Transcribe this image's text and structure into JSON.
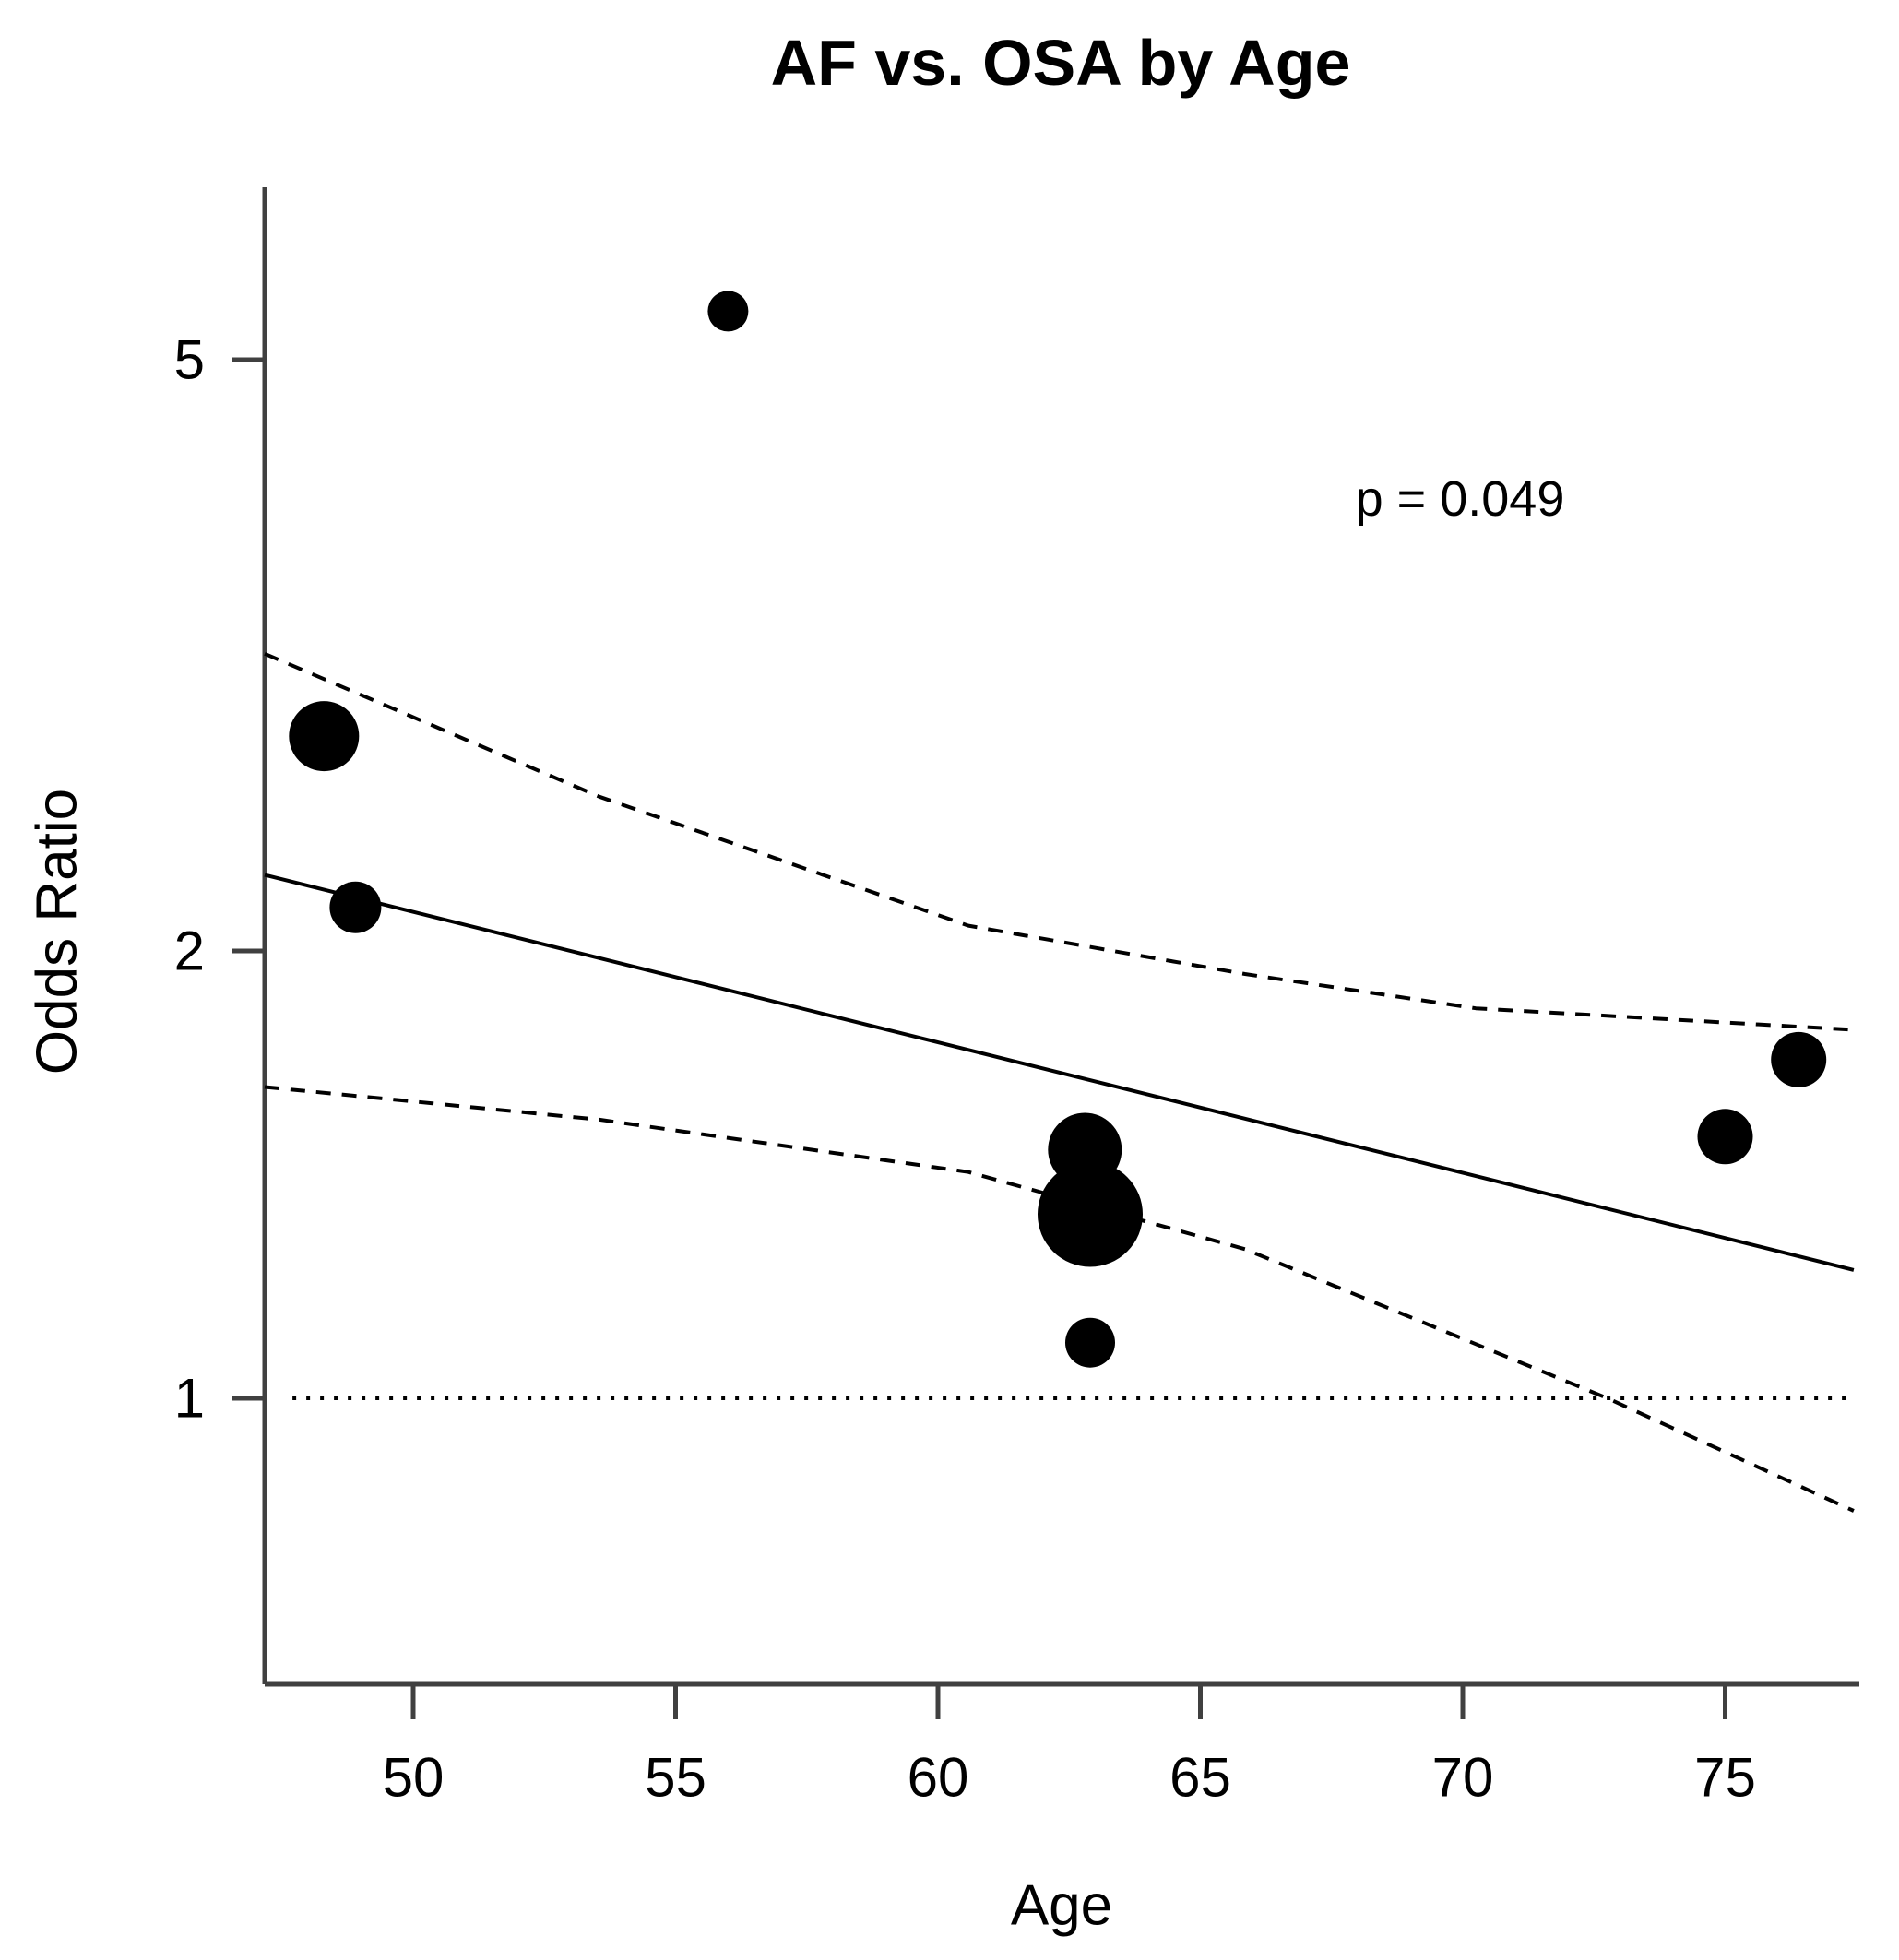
{
  "chart_data": {
    "type": "scatter",
    "subtype": "bubble_meta_regression",
    "title": "AF vs. OSA by Age",
    "xlabel": "Age",
    "ylabel": "Odds Ratio",
    "annotation": {
      "text": "p =  0.049",
      "near_age": 68,
      "near_or": 3.9
    },
    "x_axis": {
      "min": 47.2,
      "max": 77.6,
      "ticks": [
        50,
        55,
        60,
        65,
        70,
        75
      ]
    },
    "y_axis": {
      "scale": "log",
      "min": 0.64,
      "max": 6.55,
      "ticks": [
        1,
        2,
        5
      ]
    },
    "grid": false,
    "legend": false,
    "points": [
      {
        "age": 48.3,
        "or": 2.79,
        "r": 38
      },
      {
        "age": 48.9,
        "or": 2.14,
        "r": 28
      },
      {
        "age": 56.0,
        "or": 5.39,
        "r": 22
      },
      {
        "age": 62.8,
        "or": 1.47,
        "r": 40
      },
      {
        "age": 62.9,
        "or": 1.33,
        "r": 57
      },
      {
        "age": 62.9,
        "or": 1.09,
        "r": 27
      },
      {
        "age": 75.0,
        "or": 1.5,
        "r": 30
      },
      {
        "age": 76.4,
        "or": 1.69,
        "r": 30
      }
    ],
    "regression_line": {
      "style": "solid",
      "points": [
        [
          47.17,
          2.25
        ],
        [
          77.45,
          1.22
        ]
      ]
    },
    "ci_upper": {
      "style": "dashed",
      "points": [
        [
          47.17,
          3.17
        ],
        [
          53.55,
          2.54
        ],
        [
          60.58,
          2.08
        ],
        [
          65.85,
          1.93
        ],
        [
          70.25,
          1.83
        ],
        [
          77.45,
          1.77
        ]
      ]
    },
    "ci_lower": {
      "style": "dashed",
      "points": [
        [
          47.17,
          1.62
        ],
        [
          53.55,
          1.54
        ],
        [
          60.58,
          1.42
        ],
        [
          65.85,
          1.26
        ],
        [
          72.76,
          1.0
        ],
        [
          77.45,
          0.84
        ]
      ]
    },
    "reference_line": {
      "style": "dotted",
      "or": 1.0,
      "from_age": 47.7,
      "to_age": 77.45
    },
    "colors": {
      "points": "#000000",
      "lines": "#000000",
      "axis": "#404040",
      "text": "#000000",
      "background": "#ffffff"
    }
  }
}
